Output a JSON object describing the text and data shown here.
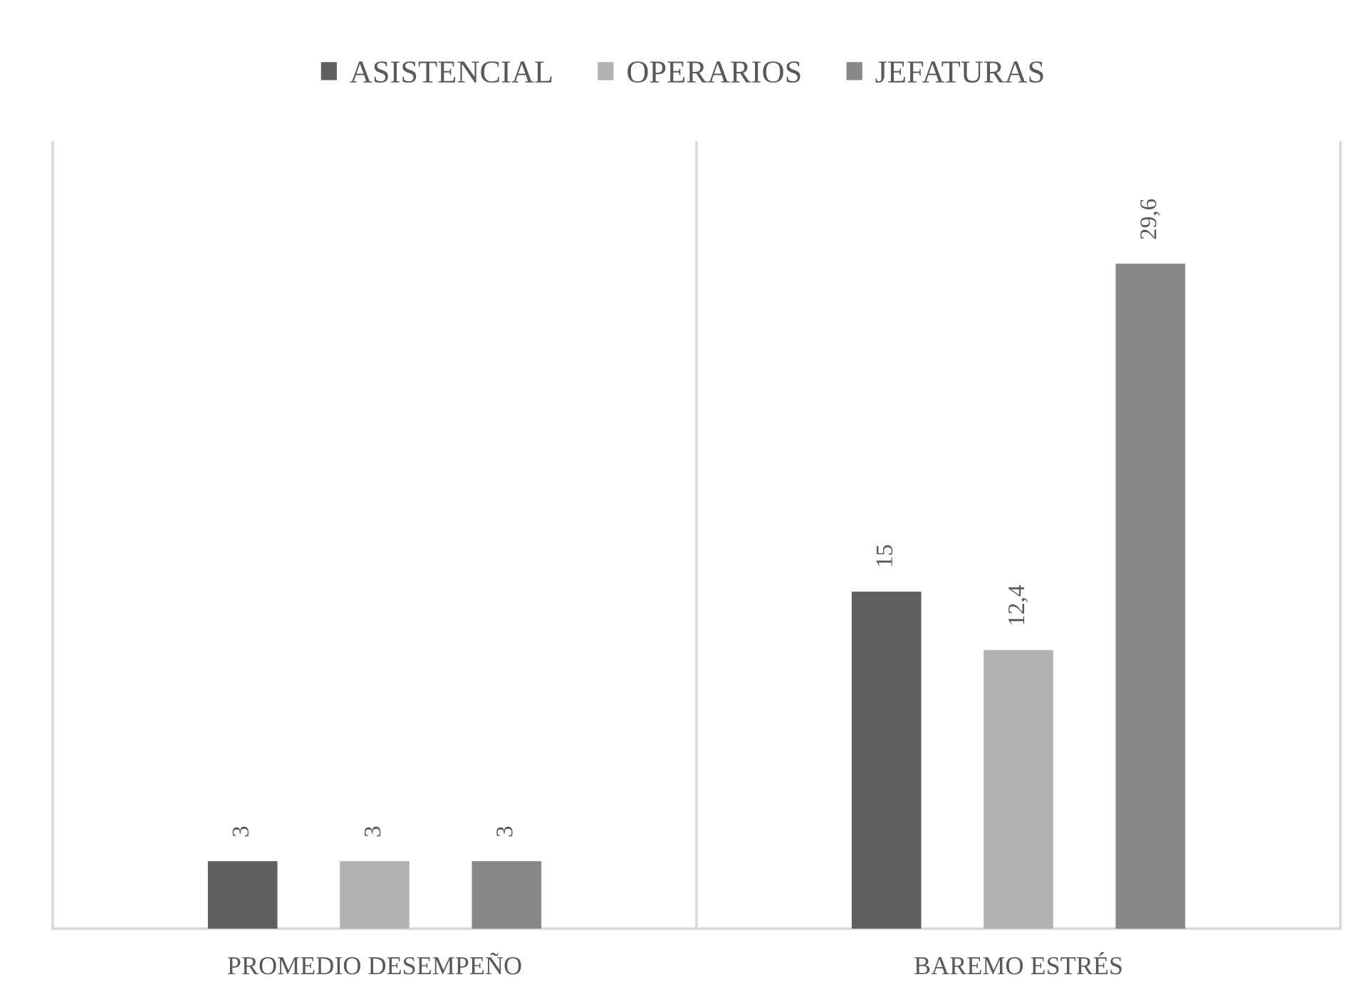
{
  "chart_data": {
    "type": "bar",
    "categories": [
      "PROMEDIO DESEMPEÑO",
      "BAREMO ESTRÉS"
    ],
    "series": [
      {
        "name": "ASISTENCIAL",
        "color": "#5f5f5f",
        "values": [
          3,
          15
        ],
        "value_labels": [
          "3",
          "15"
        ]
      },
      {
        "name": "OPERARIOS",
        "color": "#b2b2b2",
        "values": [
          3,
          12.4
        ],
        "value_labels": [
          "3",
          "12,4"
        ]
      },
      {
        "name": "JEFATURAS",
        "color": "#878787",
        "values": [
          3,
          29.6
        ],
        "value_labels": [
          "3",
          "29,6"
        ]
      }
    ],
    "ylim": [
      0,
      35
    ],
    "grid": "x",
    "legend": "top",
    "tick_labels": "x"
  }
}
